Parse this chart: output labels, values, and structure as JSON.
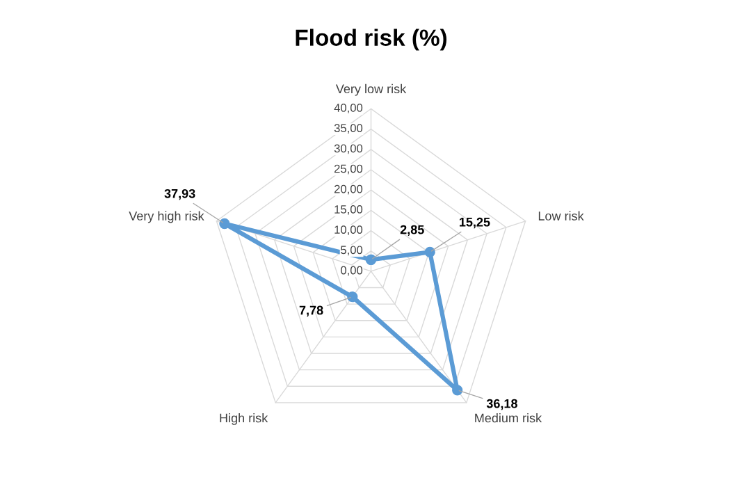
{
  "chart_data": {
    "type": "radar",
    "title": "Flood risk (%)",
    "categories": [
      "Very low risk",
      "Low risk",
      "Medium risk",
      "High risk",
      "Very high risk"
    ],
    "series": [
      {
        "color": "#5b9bd5",
        "values": [
          2.85,
          15.25,
          36.18,
          7.78,
          37.93
        ],
        "value_labels": [
          "2,85",
          "15,25",
          "36,18",
          "7,78",
          "37,93"
        ]
      }
    ],
    "ylim": [
      0,
      40
    ],
    "yticks": [
      {
        "value": 0,
        "label": "0,00"
      },
      {
        "value": 5,
        "label": "5,00"
      },
      {
        "value": 10,
        "label": "10,00"
      },
      {
        "value": 15,
        "label": "15,00"
      },
      {
        "value": 20,
        "label": "20,00"
      },
      {
        "value": 25,
        "label": "25,00"
      },
      {
        "value": 30,
        "label": "30,00"
      },
      {
        "value": 35,
        "label": "35,00"
      },
      {
        "value": 40,
        "label": "40,00"
      }
    ],
    "grid": true,
    "marker": "circle",
    "line_style": "solid"
  }
}
